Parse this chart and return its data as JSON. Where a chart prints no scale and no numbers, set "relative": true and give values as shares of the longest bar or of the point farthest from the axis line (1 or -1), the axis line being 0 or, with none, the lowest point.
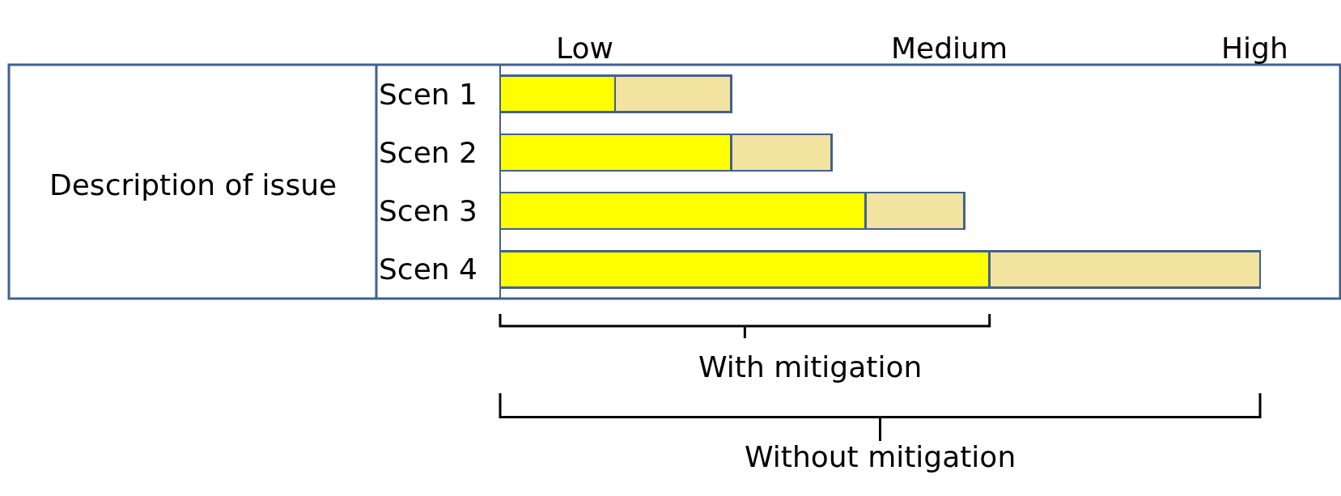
{
  "chart_data": {
    "type": "bar",
    "orientation": "horizontal",
    "stacked": true,
    "relative": true,
    "ylabel": "Description of issue",
    "categories": [
      "Scen 1",
      "Scen 2",
      "Scen 3",
      "Scen 4"
    ],
    "series": [
      {
        "color": "#ffff00",
        "values": [
          0.151,
          0.304,
          0.481,
          0.644
        ]
      },
      {
        "color": "#f2e3a0",
        "values": [
          0.153,
          0.132,
          0.13,
          0.356
        ]
      }
    ],
    "annotations": [
      "Low",
      "Medium",
      "High",
      "With mitigation",
      "Without mitigation"
    ]
  }
}
